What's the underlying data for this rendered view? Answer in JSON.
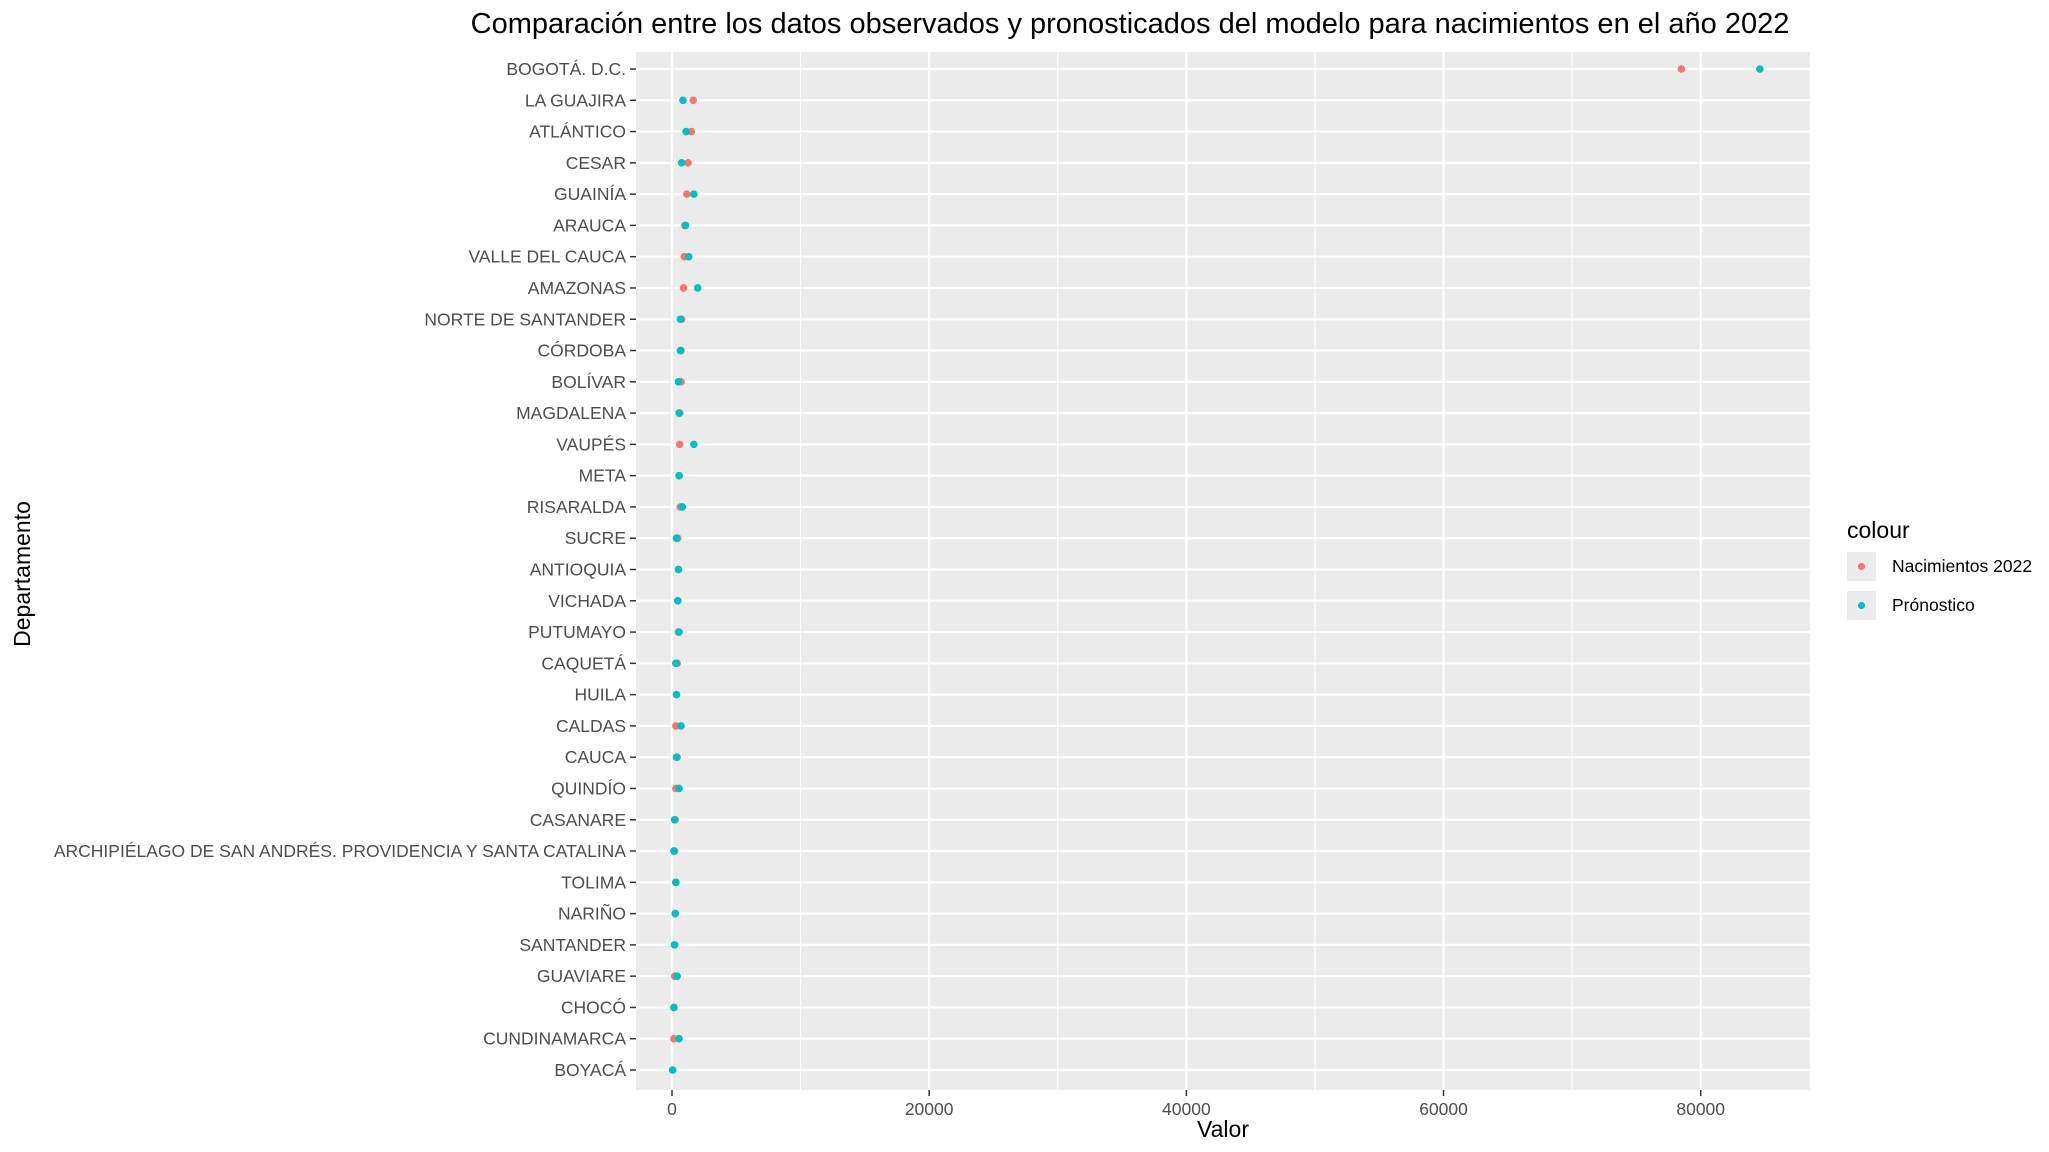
{
  "chart_data": {
    "type": "scatter",
    "title": "Comparación entre los datos observados y pronosticados del modelo para nacimientos en el año 2022",
    "xlabel": "Valor",
    "ylabel": "Departamento",
    "xlim": [
      -2800,
      88500
    ],
    "xticks": [
      0,
      20000,
      40000,
      60000,
      80000
    ],
    "xtick_labels": [
      "0",
      "20000",
      "40000",
      "60000",
      "80000"
    ],
    "grid": true,
    "legend": {
      "title": "colour",
      "placement": "right",
      "entries": [
        "Nacimientos 2022",
        "Prónostico"
      ]
    },
    "categories": [
      "BOGOTÁ. D.C.",
      "LA GUAJIRA",
      "ATLÁNTICO",
      "CESAR",
      "GUAINÍA",
      "ARAUCA",
      "VALLE DEL CAUCA",
      "AMAZONAS",
      "NORTE DE SANTANDER",
      "CÓRDOBA",
      "BOLÍVAR",
      "MAGDALENA",
      "VAUPÉS",
      "META",
      "RISARALDA",
      "SUCRE",
      "ANTIOQUIA",
      "VICHADA",
      "PUTUMAYO",
      "CAQUETÁ",
      "HUILA",
      "CALDAS",
      "CAUCA",
      "QUINDÍO",
      "CASANARE",
      "ARCHIPIÉLAGO DE SAN ANDRÉS. PROVIDENCIA Y SANTA CATALINA",
      "TOLIMA",
      "NARIÑO",
      "SANTANDER",
      "GUAVIARE",
      "CHOCÓ",
      "CUNDINAMARCA",
      "BOYACÁ"
    ],
    "series": [
      {
        "name": "Nacimientos 2022",
        "color": "#F8766D",
        "values": [
          78500,
          1650,
          1500,
          1250,
          1150,
          1000,
          950,
          900,
          750,
          700,
          700,
          600,
          600,
          550,
          650,
          450,
          500,
          450,
          500,
          400,
          350,
          300,
          400,
          300,
          250,
          200,
          300,
          250,
          200,
          200,
          150,
          150,
          50
        ]
      },
      {
        "name": "Prónostico",
        "color": "#00BFC4",
        "values": [
          84600,
          850,
          1100,
          750,
          1700,
          1050,
          1300,
          2000,
          650,
          650,
          500,
          550,
          1700,
          550,
          800,
          350,
          500,
          450,
          550,
          300,
          350,
          700,
          350,
          550,
          200,
          150,
          300,
          250,
          200,
          400,
          150,
          550,
          50
        ]
      }
    ]
  }
}
